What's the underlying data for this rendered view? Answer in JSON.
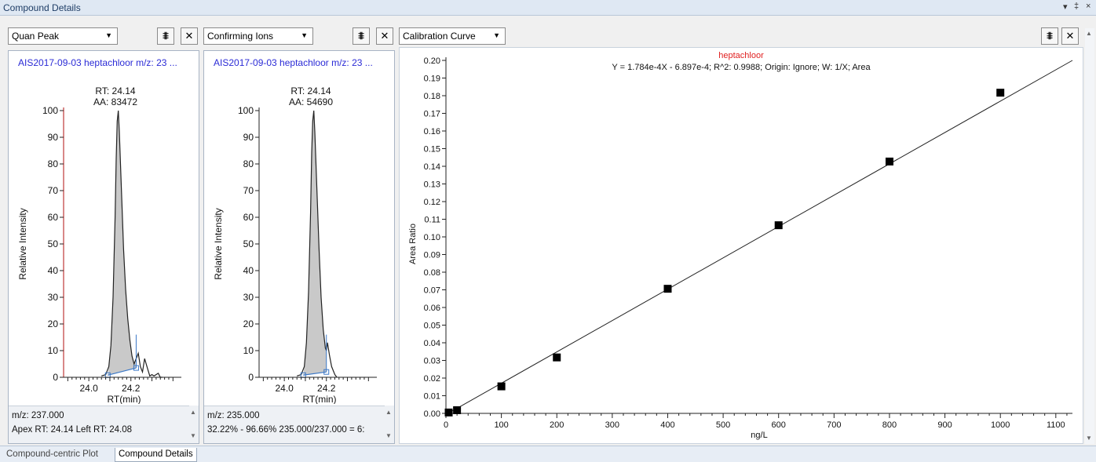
{
  "window": {
    "title": "Compound Details",
    "controls": [
      "▾",
      "‡",
      "×"
    ]
  },
  "quan_peak": {
    "dropdown": "Quan Peak",
    "header": "AIS2017-09-03   heptachloor   m/z: 23 ...",
    "rt_label": "RT: 24.14",
    "aa_label": "AA: 83472",
    "xlabel": "RT(min)",
    "ylabel": "Relative Intensity",
    "footer_line1": "m/z: 237.000",
    "footer_line2": "Apex RT:  24.14     Left RT:  24.08"
  },
  "confirming_ions": {
    "dropdown": "Confirming Ions",
    "header": "AIS2017-09-03   heptachloor   m/z: 23 ...",
    "rt_label": "RT: 24.14",
    "aa_label": "AA: 54690",
    "xlabel": "RT(min)",
    "ylabel": "Relative Intensity",
    "footer_line1": "m/z: 235.000",
    "footer_line2": "32.22% - 96.66% 235.000/237.000 = 6:"
  },
  "calibration": {
    "dropdown": "Calibration Curve",
    "compound": "heptachloor",
    "equation": "Y = 1.784e-4X - 6.897e-4; R^2: 0.9988; Origin: Ignore; W: 1/X; Area"
  },
  "bottom_tabs": [
    "Compound-centric Plot",
    "Compound Details"
  ],
  "chart_data": [
    {
      "type": "line",
      "name": "quan-peak-chromatogram",
      "xlabel": "RT(min)",
      "ylabel": "Relative Intensity",
      "xlim": [
        23.88,
        24.41
      ],
      "ylim": [
        0,
        100
      ],
      "x_ticks": [
        24.0,
        24.2
      ],
      "x_tick_labels": [
        "24.0",
        "24.2"
      ],
      "y_ticks": [
        0,
        10,
        20,
        30,
        40,
        50,
        60,
        70,
        80,
        90,
        100
      ],
      "x": [
        24.06,
        24.08,
        24.095,
        24.105,
        24.115,
        24.125,
        24.13,
        24.135,
        24.14,
        24.145,
        24.155,
        24.165,
        24.175,
        24.185,
        24.195,
        24.205,
        24.215,
        24.22,
        24.235,
        24.245,
        24.255,
        24.265,
        24.28,
        24.29,
        24.3,
        24.31,
        24.33,
        24.34,
        24.35
      ],
      "y": [
        0.5,
        1,
        4,
        12,
        30,
        60,
        82,
        96,
        100,
        92,
        70,
        48,
        33,
        22,
        14,
        8,
        5,
        6,
        9,
        4,
        2,
        7,
        3,
        0.5,
        1,
        0.5,
        1.5,
        0,
        0
      ],
      "integration": [
        24.09,
        24.225
      ],
      "baseline": [
        0.8,
        3.5
      ]
    },
    {
      "type": "line",
      "name": "confirming-ion-chromatogram",
      "xlabel": "RT(min)",
      "ylabel": "Relative Intensity",
      "xlim": [
        23.88,
        24.41
      ],
      "ylim": [
        0,
        100
      ],
      "x_ticks": [
        24.0,
        24.2
      ],
      "x_tick_labels": [
        "24.0",
        "24.2"
      ],
      "y_ticks": [
        0,
        10,
        20,
        30,
        40,
        50,
        60,
        70,
        80,
        90,
        100
      ],
      "x": [
        24.06,
        24.08,
        24.095,
        24.105,
        24.115,
        24.125,
        24.13,
        24.135,
        24.14,
        24.145,
        24.155,
        24.165,
        24.175,
        24.185,
        24.195,
        24.2,
        24.205,
        24.215,
        24.225,
        24.24,
        24.25
      ],
      "y": [
        0.5,
        1,
        4,
        13,
        32,
        62,
        84,
        96,
        100,
        92,
        70,
        48,
        30,
        18,
        11,
        10,
        13,
        8,
        4,
        1,
        0
      ],
      "integration": [
        24.09,
        24.2
      ],
      "baseline": [
        0.8,
        2
      ]
    },
    {
      "type": "scatter",
      "name": "calibration-curve",
      "title": "heptachloor",
      "subtitle": "Y = 1.784e-4X - 6.897e-4; R^2: 0.9988; Origin: Ignore; W: 1/X; Area",
      "xlabel": "ng/L",
      "ylabel": "Area Ratio",
      "xlim": [
        0,
        1130
      ],
      "ylim": [
        0,
        0.2
      ],
      "x_ticks": [
        0,
        100,
        200,
        300,
        400,
        500,
        600,
        700,
        800,
        900,
        1000,
        1100
      ],
      "y_ticks": [
        0,
        0.01,
        0.02,
        0.03,
        0.04,
        0.05,
        0.06,
        0.07,
        0.08,
        0.09,
        0.1,
        0.11,
        0.12,
        0.13,
        0.14,
        0.15,
        0.16,
        0.17,
        0.18,
        0.19,
        0.2
      ],
      "y_tick_labels": [
        "0.00",
        "0.01",
        "0.02",
        "0.03",
        "0.04",
        "0.05",
        "0.06",
        "0.07",
        "0.08",
        "0.09",
        "0.10",
        "0.11",
        "0.12",
        "0.13",
        "0.14",
        "0.15",
        "0.16",
        "0.17",
        "0.18",
        "0.19",
        "0.20"
      ],
      "points": {
        "x": [
          5,
          20,
          100,
          200,
          400,
          600,
          800,
          1000
        ],
        "y": [
          0.0005,
          0.0018,
          0.0153,
          0.0317,
          0.0706,
          0.1066,
          0.1427,
          0.1817
        ]
      },
      "fit": {
        "slope": 0.0001784,
        "intercept": -0.0006897
      }
    }
  ]
}
